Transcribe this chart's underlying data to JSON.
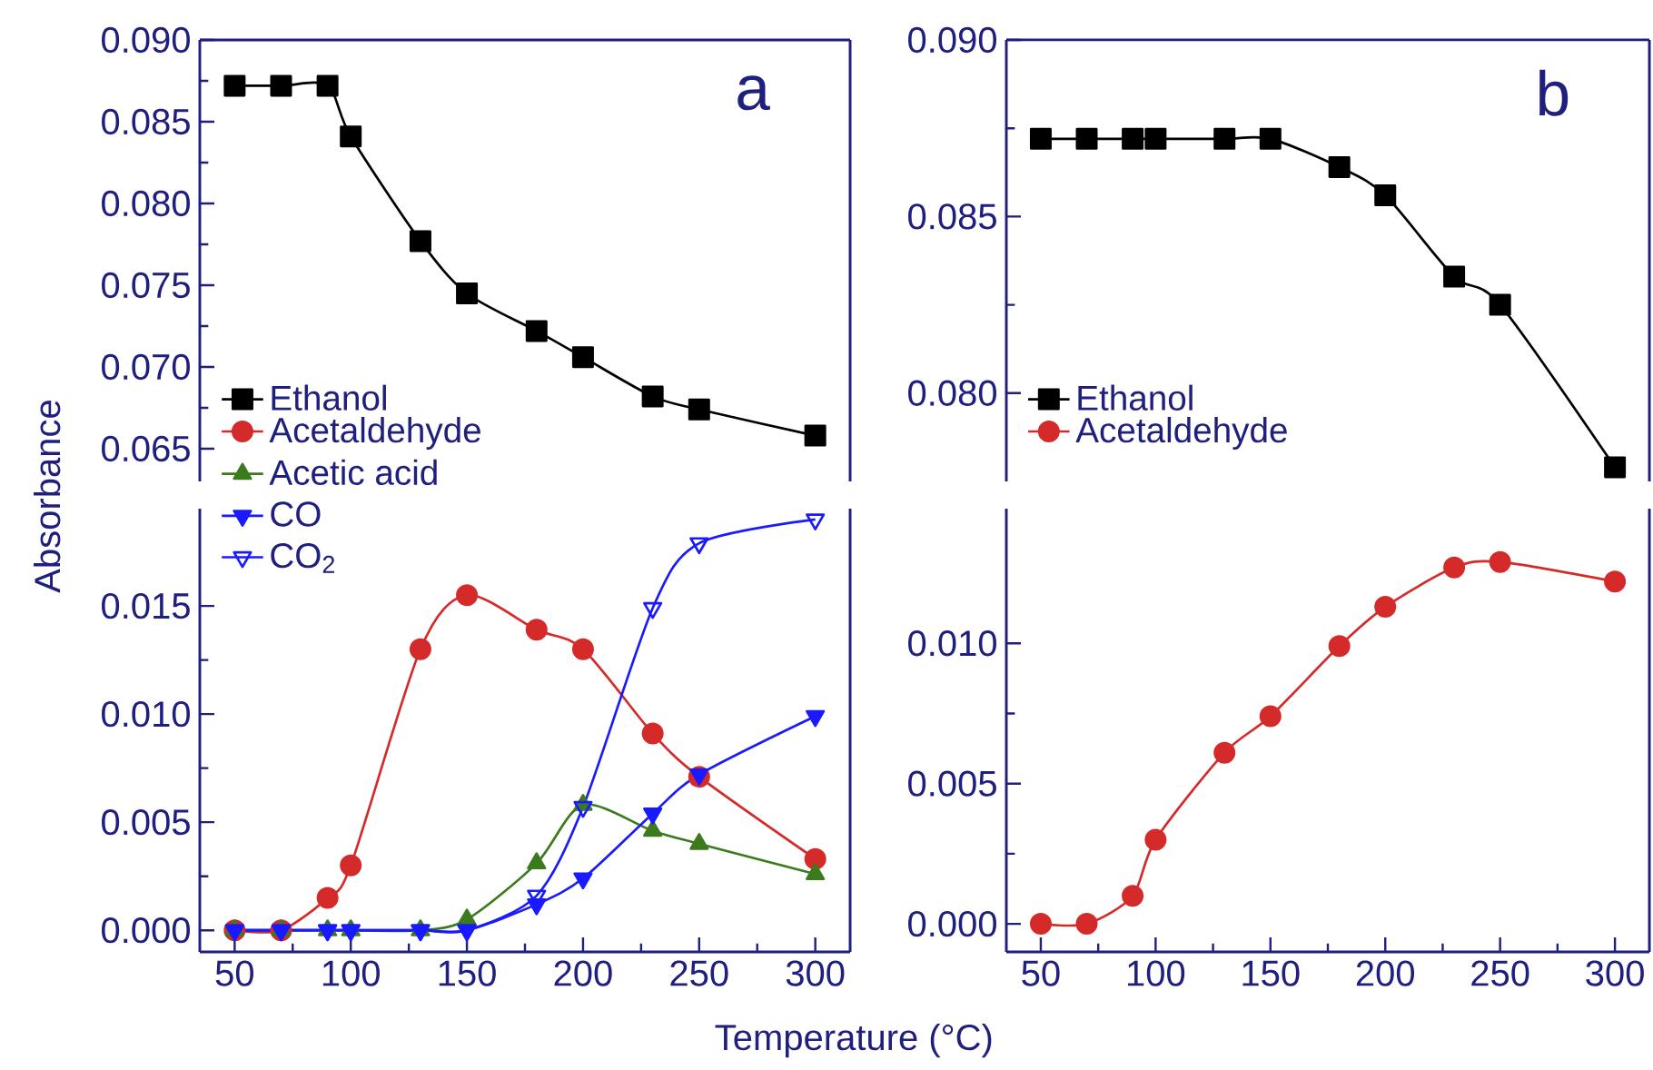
{
  "chart_data": [
    {
      "type": "line",
      "ylabel": "Absorbance",
      "annotations": [
        "a"
      ],
      "x": [
        50,
        70,
        90,
        100,
        130,
        150,
        180,
        200,
        230,
        250,
        300
      ],
      "xlim": [
        35,
        315
      ],
      "ylim": [
        0.063,
        0.09
      ],
      "yticks": [
        0.065,
        {
          "value": 0.07,
          "label": "0.070"
        },
        0.075,
        {
          "value": 0.08,
          "label": "0.080"
        },
        0.085,
        {
          "value": 0.09,
          "label": "0.090"
        }
      ],
      "tick_labels": "y",
      "legend": "bottom left",
      "series": [
        {
          "name": "Ethanol",
          "color": "#000000",
          "marker": "square",
          "values": [
            0.0872,
            0.0872,
            0.0872,
            0.0841,
            0.0777,
            0.0745,
            0.0722,
            0.0706,
            0.0682,
            0.0674,
            0.0658
          ]
        }
      ]
    },
    {
      "type": "line",
      "xlabel": "Temperature (°C)",
      "x": [
        50,
        70,
        90,
        100,
        130,
        150,
        180,
        200,
        230,
        250,
        300
      ],
      "xlim": [
        35,
        315
      ],
      "xticks": [
        50,
        100,
        150,
        200,
        250,
        300
      ],
      "ylim": [
        -0.001,
        0.0195
      ],
      "yticks": [
        {
          "value": 0,
          "label": "0.000"
        },
        0.005,
        {
          "value": 0.01,
          "label": "0.010"
        },
        0.015
      ],
      "legend": "top left",
      "series": [
        {
          "name": "Acetaldehyde",
          "color": "#d42a2a",
          "marker": "circle",
          "values": [
            0,
            0,
            0.0015,
            0.003,
            0.013,
            0.0155,
            0.0139,
            0.013,
            0.0091,
            0.0071,
            0.0033
          ]
        },
        {
          "name": "Acetic acid",
          "color": "#3c7a1e",
          "marker": "triangle",
          "values": [
            0,
            0,
            0,
            0,
            0,
            0.0005,
            0.0031,
            0.0058,
            0.0046,
            0.004,
            0.0026
          ]
        },
        {
          "name": "CO",
          "color": "#1a1aff",
          "marker": "triangle-down",
          "values": [
            0,
            0,
            0,
            0,
            0,
            0,
            0.0012,
            0.0024,
            0.0054,
            0.0072,
            0.0099
          ]
        },
        {
          "name": "CO$_{2}$",
          "color": "#1a1aff",
          "marker": "triangle-down-open",
          "values": [
            0,
            0,
            0,
            0,
            0,
            0,
            0.0016,
            0.0057,
            0.0149,
            0.0179,
            0.019
          ]
        }
      ]
    },
    {
      "type": "line",
      "annotations": [
        "b"
      ],
      "x": [
        50,
        70,
        90,
        100,
        130,
        150,
        180,
        200,
        230,
        250,
        300
      ],
      "xlim": [
        35,
        315
      ],
      "ylim": [
        0.0775,
        0.09
      ],
      "yticks": [
        {
          "value": 0.08,
          "label": "0.080"
        },
        0.085,
        {
          "value": 0.09,
          "label": "0.090"
        }
      ],
      "tick_labels": "y",
      "legend": "bottom left",
      "series": [
        {
          "name": "Ethanol",
          "color": "#000000",
          "marker": "square",
          "values": [
            0.0872,
            0.0872,
            0.0872,
            0.0872,
            0.0872,
            0.0872,
            0.0864,
            0.0856,
            0.0833,
            0.0825,
            0.0779
          ]
        }
      ]
    },
    {
      "type": "line",
      "x": [
        50,
        70,
        90,
        100,
        130,
        150,
        180,
        200,
        230,
        250,
        300
      ],
      "xlim": [
        35,
        315
      ],
      "xticks": [
        50,
        100,
        150,
        200,
        250,
        300
      ],
      "ylim": [
        -0.001,
        0.0148
      ],
      "yticks": [
        {
          "value": 0,
          "label": "0.000"
        },
        0.005,
        {
          "value": 0.01,
          "label": "0.010"
        }
      ],
      "legend": "top left",
      "series": [
        {
          "name": "Acetaldehyde",
          "color": "#d42a2a",
          "marker": "circle",
          "values": [
            0,
            0,
            0.001,
            0.003,
            0.0061,
            0.0074,
            0.0099,
            0.0113,
            0.0127,
            0.0129,
            0.0122
          ]
        }
      ]
    }
  ]
}
